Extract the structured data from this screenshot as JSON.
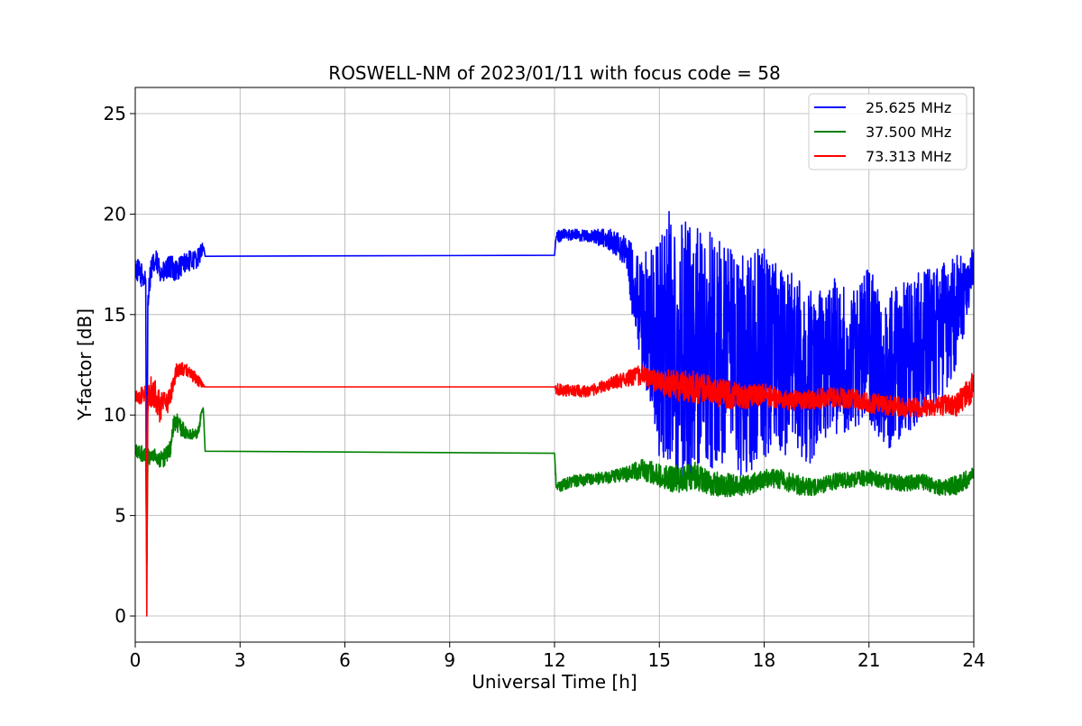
{
  "chart_data": {
    "type": "line",
    "title": "ROSWELL-NM of 2023/01/11 with focus code = 58",
    "xlabel": "Universal Time [h]",
    "ylabel": "Y-factor [dB]",
    "xlim": [
      0,
      24
    ],
    "ylim": [
      -1.3,
      26.3
    ],
    "xticks": [
      0,
      3,
      6,
      9,
      12,
      15,
      18,
      21,
      24
    ],
    "yticks": [
      0,
      5,
      10,
      15,
      20,
      25
    ],
    "xtick_labels": [
      "0",
      "3",
      "6",
      "9",
      "12",
      "15",
      "18",
      "21",
      "24"
    ],
    "ytick_labels": [
      "0",
      "5",
      "10",
      "15",
      "20",
      "25"
    ],
    "grid": true,
    "legend_position": "top-right",
    "series": [
      {
        "name": "25.625 MHz",
        "color": "#0000ff",
        "x": [
          0.0,
          0.15,
          0.3,
          0.33,
          0.36,
          0.45,
          0.6,
          0.8,
          1.0,
          1.2,
          1.4,
          1.6,
          1.8,
          1.95,
          2.0,
          12.0,
          12.05,
          12.5,
          13.0,
          13.5,
          14.0,
          14.5,
          15.0,
          15.3,
          15.6,
          16.0,
          16.5,
          17.0,
          17.5,
          18.0,
          18.5,
          19.0,
          19.3,
          19.5,
          20.0,
          20.5,
          21.0,
          21.5,
          22.0,
          22.5,
          23.0,
          23.5,
          24.0
        ],
        "values": [
          17.3,
          17.0,
          16.8,
          2.6,
          15.8,
          17.3,
          17.6,
          17.0,
          17.4,
          17.2,
          17.6,
          17.7,
          17.8,
          18.4,
          17.9,
          17.95,
          18.9,
          19.0,
          18.9,
          18.8,
          18.2,
          15.0,
          13.0,
          14.0,
          13.0,
          13.5,
          13.0,
          12.5,
          12.5,
          13.0,
          12.8,
          12.5,
          12.0,
          12.0,
          13.0,
          12.5,
          13.5,
          12.0,
          13.0,
          13.5,
          14.0,
          15.0,
          17.5
        ],
        "noise": [
          0.6,
          0.6,
          0.6,
          0,
          0.6,
          0.6,
          0.6,
          0.6,
          0.6,
          0.6,
          0.5,
          0.5,
          0.5,
          0.3,
          0,
          0,
          0.3,
          0.3,
          0.3,
          0.5,
          0.8,
          3.0,
          5.5,
          6.5,
          7.0,
          6.5,
          6.0,
          5.8,
          5.5,
          5.5,
          4.8,
          4.5,
          4.5,
          4.0,
          4.0,
          3.5,
          4.0,
          3.8,
          4.0,
          3.8,
          3.5,
          3.0,
          0.8
        ]
      },
      {
        "name": "37.500 MHz",
        "color": "#008000",
        "x": [
          0.0,
          0.3,
          0.33,
          0.36,
          0.5,
          0.8,
          1.0,
          1.1,
          1.2,
          1.5,
          1.8,
          1.9,
          1.95,
          2.0,
          12.0,
          12.05,
          12.5,
          13.0,
          13.5,
          14.0,
          14.5,
          15.0,
          15.5,
          16.0,
          16.5,
          17.0,
          17.5,
          18.0,
          18.5,
          19.0,
          19.5,
          20.0,
          20.5,
          21.0,
          21.5,
          22.0,
          22.5,
          23.0,
          23.5,
          24.0
        ],
        "values": [
          8.2,
          8.0,
          2.6,
          7.9,
          8.0,
          7.8,
          8.3,
          9.5,
          9.6,
          9.0,
          9.1,
          10.2,
          10.3,
          8.2,
          8.1,
          6.4,
          6.7,
          6.8,
          6.9,
          7.0,
          7.3,
          7.0,
          6.8,
          7.0,
          6.6,
          6.5,
          6.5,
          6.8,
          6.8,
          6.5,
          6.4,
          6.7,
          6.8,
          6.9,
          6.7,
          6.6,
          6.7,
          6.4,
          6.5,
          7.0
        ],
        "noise": [
          0.4,
          0.4,
          0,
          0.4,
          0.4,
          0.5,
          0.4,
          0.5,
          0.5,
          0.3,
          0.3,
          0.2,
          0.1,
          0,
          0,
          0.3,
          0.3,
          0.3,
          0.3,
          0.4,
          0.5,
          0.6,
          0.7,
          0.7,
          0.6,
          0.6,
          0.5,
          0.5,
          0.5,
          0.5,
          0.4,
          0.4,
          0.4,
          0.4,
          0.4,
          0.4,
          0.4,
          0.4,
          0.5,
          0.4
        ]
      },
      {
        "name": "73.313 MHz",
        "color": "#ff0000",
        "x": [
          0.0,
          0.3,
          0.33,
          0.36,
          0.5,
          0.7,
          0.9,
          1.0,
          1.2,
          1.5,
          1.8,
          2.0,
          12.0,
          12.05,
          12.5,
          13.0,
          13.5,
          14.0,
          14.5,
          15.0,
          15.5,
          16.0,
          16.5,
          17.0,
          17.5,
          18.0,
          18.5,
          19.0,
          19.5,
          20.0,
          20.5,
          21.0,
          21.5,
          22.0,
          22.5,
          23.0,
          23.5,
          24.0
        ],
        "values": [
          10.9,
          11.0,
          0.0,
          10.8,
          11.3,
          10.4,
          10.5,
          11.0,
          12.3,
          12.2,
          11.7,
          11.4,
          11.4,
          11.3,
          11.2,
          11.2,
          11.5,
          11.8,
          12.0,
          11.6,
          11.5,
          11.4,
          11.2,
          11.0,
          10.9,
          11.0,
          10.8,
          10.7,
          10.8,
          10.9,
          10.8,
          10.6,
          10.5,
          10.4,
          10.4,
          10.5,
          10.5,
          11.5
        ],
        "noise": [
          0.3,
          0.5,
          0,
          0.8,
          0.8,
          0.8,
          0.6,
          0.5,
          0.4,
          0.3,
          0.3,
          0,
          0,
          0.3,
          0.3,
          0.3,
          0.3,
          0.4,
          0.5,
          0.6,
          0.8,
          0.8,
          0.7,
          0.7,
          0.6,
          0.6,
          0.5,
          0.5,
          0.5,
          0.5,
          0.5,
          0.5,
          0.5,
          0.5,
          0.5,
          0.5,
          0.6,
          0.8
        ]
      }
    ]
  }
}
